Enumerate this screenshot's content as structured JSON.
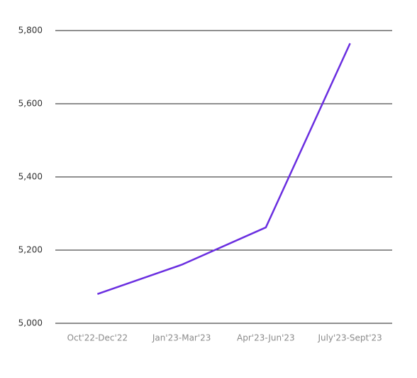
{
  "chart_data": {
    "type": "line",
    "categories": [
      "Oct'22-Dec'22",
      "Jan'23-Mar'23",
      "Apr'23-Jun'23",
      "July'23-Sept'23"
    ],
    "series": [
      {
        "color": "#6a2ee0",
        "values": [
          5080,
          5160,
          5262,
          5765
        ]
      }
    ],
    "ylim": [
      5000,
      5800
    ],
    "yticks": [
      {
        "value": 5000,
        "label": "5,000"
      },
      {
        "value": 5200,
        "label": "5,200"
      },
      {
        "value": 5400,
        "label": "5,400"
      },
      {
        "value": 5600,
        "label": "5,600"
      },
      {
        "value": 5800,
        "label": "5,800"
      }
    ],
    "grid": true
  }
}
